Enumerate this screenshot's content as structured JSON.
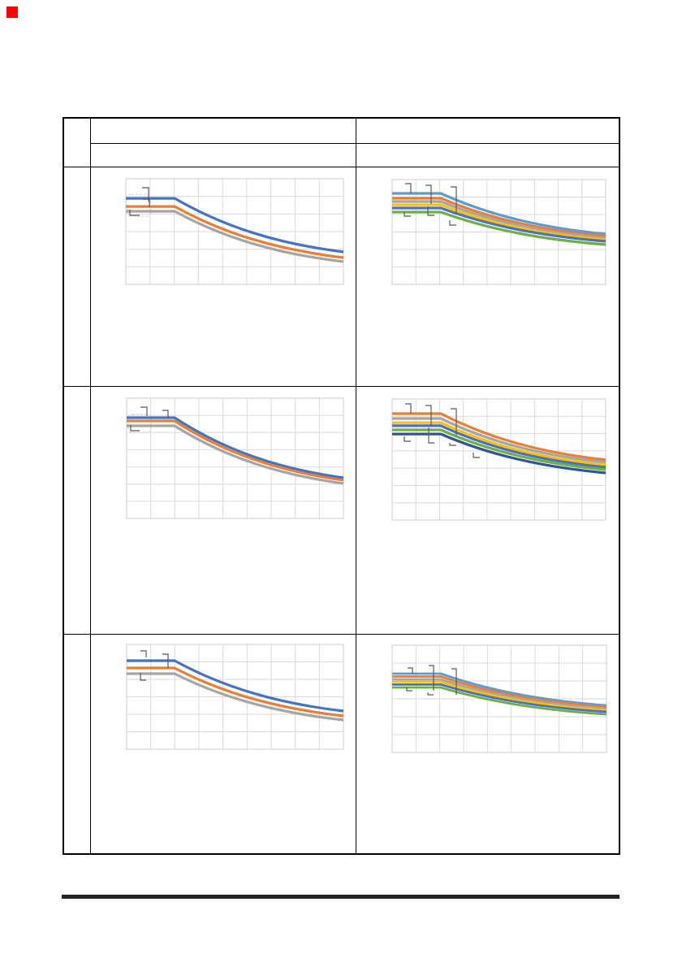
{
  "page": {
    "background": "#ffffff",
    "marker_color": "#fe0000",
    "footer_rule_color": "#232323",
    "table_border_color": "#000000",
    "grid_color": "#d9d9d9",
    "mark_color": "#595959",
    "ghost_color": "#cccccc"
  },
  "table": {
    "header": {
      "row_label_column": "",
      "main_left": "",
      "main_right": "",
      "sub_left": "",
      "sub_right": ""
    },
    "row_labels": [
      "",
      "",
      ""
    ]
  },
  "chart_data": [
    {
      "id": "r1-left",
      "type": "line",
      "title": "",
      "xlabel": "",
      "ylabel": "",
      "x_ticks": [],
      "y_ticks": [],
      "legend": "none",
      "grid": {
        "cols": 9,
        "rows": 6
      },
      "kink_x_frac": 0.225,
      "series": [
        {
          "color": "#4472C4",
          "y_flat_pct": 18.5,
          "y_end_pct": 69.2
        },
        {
          "color": "#ED7D31",
          "y_flat_pct": 26.2,
          "y_end_pct": 74.6
        },
        {
          "color": "#A5A5A5",
          "y_flat_pct": 30.8,
          "y_end_pct": 78.5
        }
      ],
      "marks": [
        [
          [
            20,
            11
          ],
          [
            28,
            11
          ],
          [
            28,
            28
          ]
        ],
        [
          [
            22,
            25
          ],
          [
            29,
            25
          ],
          [
            29,
            35
          ]
        ],
        [
          [
            5,
            38
          ],
          [
            5,
            45
          ],
          [
            17,
            45
          ]
        ]
      ],
      "ghost_box": [
        2,
        19,
        29,
        27
      ]
    },
    {
      "id": "r1-right",
      "type": "line",
      "title": "",
      "xlabel": "",
      "ylabel": "",
      "x_ticks": [],
      "y_ticks": [],
      "legend": "none",
      "grid": {
        "cols": 9,
        "rows": 6
      },
      "kink_x_frac": 0.228,
      "series": [
        {
          "color": "#5B9BD5",
          "y_flat_pct": 13.2,
          "y_end_pct": 51.9
        },
        {
          "color": "#ED7D31",
          "y_flat_pct": 17.8,
          "y_end_pct": 54.0
        },
        {
          "color": "#A5A5A5",
          "y_flat_pct": 20.9,
          "y_end_pct": 55.8
        },
        {
          "color": "#FFC000",
          "y_flat_pct": 24.0,
          "y_end_pct": 57.4
        },
        {
          "color": "#4472C4",
          "y_flat_pct": 27.1,
          "y_end_pct": 58.9
        },
        {
          "color": "#70AD47",
          "y_flat_pct": 31.0,
          "y_end_pct": 62.0
        }
      ],
      "marks": [
        [
          [
            16,
            5
          ],
          [
            23,
            5
          ],
          [
            23,
            17
          ]
        ],
        [
          [
            15,
            40
          ],
          [
            15,
            45
          ],
          [
            23,
            45
          ]
        ],
        [
          [
            41,
            7
          ],
          [
            48,
            7
          ],
          [
            48,
            30
          ]
        ],
        [
          [
            44,
            33
          ],
          [
            44,
            44
          ],
          [
            52,
            44
          ]
        ],
        [
          [
            72,
            9
          ],
          [
            79,
            9
          ],
          [
            79,
            42
          ]
        ],
        [
          [
            71,
            50
          ],
          [
            71,
            56
          ],
          [
            79,
            56
          ]
        ]
      ],
      "ghost_box": null
    },
    {
      "id": "r2-left",
      "type": "line",
      "title": "",
      "xlabel": "",
      "ylabel": "",
      "x_ticks": [],
      "y_ticks": [],
      "legend": "none",
      "grid": {
        "cols": 9,
        "rows": 7
      },
      "kink_x_frac": 0.221,
      "series": [
        {
          "color": "#4472C4",
          "y_flat_pct": 16.2,
          "y_end_pct": 66.2
        },
        {
          "color": "#ED7D31",
          "y_flat_pct": 18.9,
          "y_end_pct": 68.2
        },
        {
          "color": "#A5A5A5",
          "y_flat_pct": 23.0,
          "y_end_pct": 70.9
        }
      ],
      "marks": [
        [
          [
            17,
            11
          ],
          [
            25,
            11
          ],
          [
            25,
            22
          ]
        ],
        [
          [
            44,
            15
          ],
          [
            51,
            15
          ],
          [
            51,
            25
          ]
        ],
        [
          [
            5,
            33
          ],
          [
            5,
            40
          ],
          [
            16,
            40
          ]
        ]
      ],
      "ghost_box": [
        2,
        20,
        28,
        22
      ]
    },
    {
      "id": "r2-right",
      "type": "line",
      "title": "",
      "xlabel": "",
      "ylabel": "",
      "x_ticks": [],
      "y_ticks": [],
      "legend": "none",
      "grid": {
        "cols": 9,
        "rows": 7
      },
      "kink_x_frac": 0.228,
      "series": [
        {
          "color": "#ED7D31",
          "y_flat_pct": 12.1,
          "y_end_pct": 50.3
        },
        {
          "color": "#A5A5A5",
          "y_flat_pct": 16.1,
          "y_end_pct": 52.3
        },
        {
          "color": "#FFC000",
          "y_flat_pct": 19.5,
          "y_end_pct": 54.4
        },
        {
          "color": "#4472C4",
          "y_flat_pct": 22.1,
          "y_end_pct": 56.4
        },
        {
          "color": "#70AD47",
          "y_flat_pct": 25.5,
          "y_end_pct": 58.4
        },
        {
          "color": "#2F5597",
          "y_flat_pct": 28.9,
          "y_end_pct": 61.1
        }
      ],
      "marks": [
        [
          [
            16,
            6
          ],
          [
            23,
            6
          ],
          [
            23,
            18
          ]
        ],
        [
          [
            15,
            46
          ],
          [
            15,
            52
          ],
          [
            23,
            52
          ]
        ],
        [
          [
            41,
            8
          ],
          [
            48,
            8
          ],
          [
            48,
            33
          ]
        ],
        [
          [
            45,
            35
          ],
          [
            45,
            54
          ],
          [
            52,
            54
          ]
        ],
        [
          [
            72,
            12
          ],
          [
            79,
            12
          ],
          [
            79,
            45
          ]
        ],
        [
          [
            71,
            54
          ],
          [
            71,
            57
          ],
          [
            79,
            57
          ]
        ],
        [
          [
            100,
            66
          ],
          [
            100,
            72
          ],
          [
            108,
            72
          ]
        ]
      ],
      "ghost_box": null
    },
    {
      "id": "r3-left",
      "type": "line",
      "title": "",
      "xlabel": "",
      "ylabel": "",
      "x_ticks": [],
      "y_ticks": [],
      "legend": "none",
      "grid": {
        "cols": 9,
        "rows": 6
      },
      "kink_x_frac": 0.221,
      "series": [
        {
          "color": "#4472C4",
          "y_flat_pct": 15.5,
          "y_end_pct": 63.6
        },
        {
          "color": "#ED7D31",
          "y_flat_pct": 22.5,
          "y_end_pct": 68.2
        },
        {
          "color": "#A5A5A5",
          "y_flat_pct": 27.9,
          "y_end_pct": 72.1
        }
      ],
      "marks": [
        [
          [
            17,
            8
          ],
          [
            24,
            8
          ],
          [
            24,
            16
          ]
        ],
        [
          [
            44,
            12
          ],
          [
            51,
            12
          ],
          [
            51,
            29
          ]
        ],
        [
          [
            17,
            35
          ],
          [
            17,
            44
          ],
          [
            24,
            44
          ]
        ]
      ],
      "ghost_box": null
    },
    {
      "id": "r3-right",
      "type": "line",
      "title": "",
      "xlabel": "",
      "ylabel": "",
      "x_ticks": [],
      "y_ticks": [],
      "legend": "none",
      "grid": {
        "cols": 9,
        "rows": 6
      },
      "kink_x_frac": 0.227,
      "series": [
        {
          "color": "#5B9BD5",
          "y_flat_pct": 26.5,
          "y_end_pct": 56.1
        },
        {
          "color": "#ED7D31",
          "y_flat_pct": 29.2,
          "y_end_pct": 57.6
        },
        {
          "color": "#A5A5A5",
          "y_flat_pct": 31.8,
          "y_end_pct": 59.1
        },
        {
          "color": "#FFC000",
          "y_flat_pct": 34.1,
          "y_end_pct": 60.6
        },
        {
          "color": "#4472C4",
          "y_flat_pct": 36.7,
          "y_end_pct": 62.1
        },
        {
          "color": "#70AD47",
          "y_flat_pct": 39.4,
          "y_end_pct": 64.4
        }
      ],
      "marks": [
        [
          [
            19,
            28
          ],
          [
            25,
            28
          ],
          [
            25,
            35
          ]
        ],
        [
          [
            18,
            52
          ],
          [
            18,
            56
          ],
          [
            25,
            56
          ]
        ],
        [
          [
            45,
            25
          ],
          [
            51,
            25
          ],
          [
            51,
            56
          ]
        ],
        [
          [
            44,
            58
          ],
          [
            44,
            61
          ],
          [
            51,
            61
          ]
        ],
        [
          [
            73,
            29
          ],
          [
            79,
            29
          ],
          [
            79,
            61
          ]
        ]
      ],
      "ghost_box": null
    }
  ]
}
